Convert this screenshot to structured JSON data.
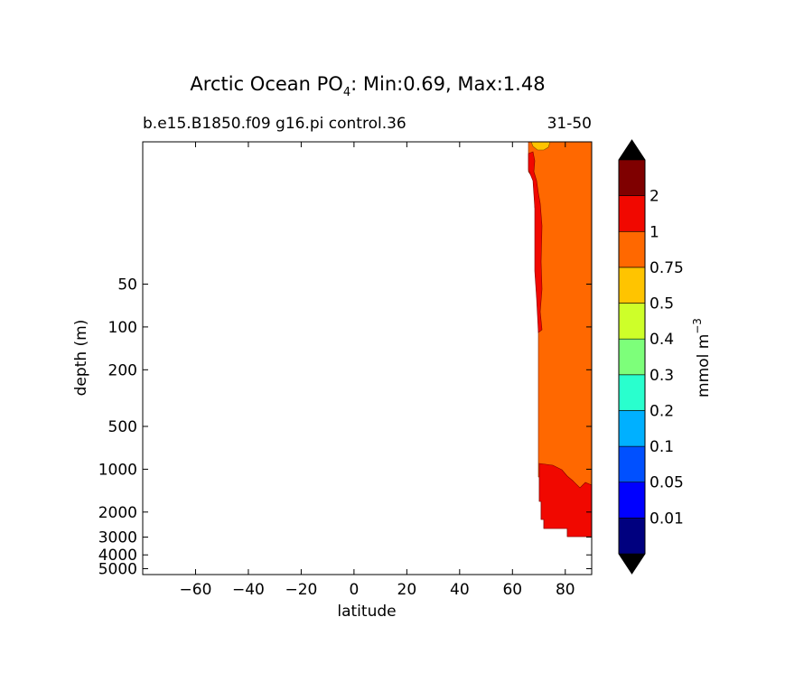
{
  "chart_data": {
    "type": "contour",
    "title": {
      "prefix": "Arctic Ocean PO",
      "subscript": "4",
      "suffix": ": Min:0.69, Max:1.48"
    },
    "subtitle_left": "b.e15.B1850.f09 g16.pi control.36",
    "subtitle_right": "31-50",
    "xlabel": "latitude",
    "ylabel": "depth (m)",
    "x_range": [
      -80,
      90
    ],
    "y_range": [
      5,
      5500
    ],
    "y_scale": "log",
    "y_inverted": true,
    "x_ticks": [
      -60,
      -40,
      -20,
      0,
      20,
      40,
      60,
      80
    ],
    "x_tick_labels": [
      "−60",
      "−40",
      "−20",
      "0",
      "20",
      "40",
      "60",
      "80"
    ],
    "y_ticks": [
      50,
      100,
      200,
      500,
      1000,
      2000,
      3000,
      4000,
      5000
    ],
    "y_tick_labels": [
      "50",
      "100",
      "200",
      "500",
      "1000",
      "2000",
      "3000",
      "4000",
      "5000"
    ],
    "colorbar": {
      "label": "mmol m",
      "label_superscript": "−3",
      "levels": [
        "0.01",
        "0.05",
        "0.1",
        "0.2",
        "0.3",
        "0.4",
        "0.5",
        "0.75",
        "1",
        "2"
      ],
      "colors": [
        "#00007f",
        "#0000ff",
        "#0050ff",
        "#00b0ff",
        "#29ffce",
        "#7dff7a",
        "#ceff29",
        "#ffc400",
        "#ff6800",
        "#f10800",
        "#7f0000"
      ],
      "extend": "both",
      "extend_color": "#000000"
    },
    "regions": [
      {
        "name": "0.75-1",
        "color": "#ff6800"
      },
      {
        "name": "1-2",
        "color": "#f10800"
      },
      {
        "name": "0.5-0.75",
        "color": "#ffc400"
      }
    ]
  }
}
